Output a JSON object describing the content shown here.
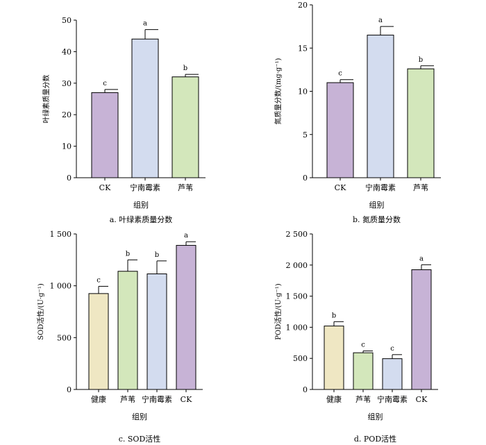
{
  "colors": {
    "purple": "#c7b3d6",
    "blue": "#d3dcef",
    "green": "#d3e7bb",
    "yellow": "#efe7c3",
    "axis": "#000000"
  },
  "chart_data": [
    {
      "type": "bar",
      "caption": "a. 叶绿素质量分数",
      "ylabel": "叶绿素质量分数",
      "xlabel": "组别",
      "categories": [
        "CK",
        "宁南霉素",
        "芦苇"
      ],
      "values": [
        27,
        44,
        32
      ],
      "errors": [
        1.0,
        3.0,
        0.8
      ],
      "letters": [
        "c",
        "a",
        "b"
      ],
      "bar_colors": [
        "purple",
        "blue",
        "green"
      ],
      "ylim": [
        0,
        50
      ],
      "yticks": [
        0,
        10,
        20,
        30,
        40,
        50
      ],
      "ytick_labels": [
        "0",
        "10",
        "20",
        "30",
        "40",
        "50"
      ]
    },
    {
      "type": "bar",
      "caption": "b. 氮质量分数",
      "ylabel": "氮质量分数/(mg·g⁻¹)",
      "xlabel": "组别",
      "categories": [
        "CK",
        "宁南霉素",
        "芦苇"
      ],
      "values": [
        11,
        16.5,
        12.6
      ],
      "errors": [
        0.35,
        1.0,
        0.35
      ],
      "letters": [
        "c",
        "a",
        "b"
      ],
      "bar_colors": [
        "purple",
        "blue",
        "green"
      ],
      "ylim": [
        0,
        20
      ],
      "yticks": [
        0,
        5,
        10,
        15,
        20
      ],
      "ytick_labels": [
        "0",
        "5",
        "10",
        "15",
        "20"
      ]
    },
    {
      "type": "bar",
      "caption": "c. SOD活性",
      "ylabel": "SOD活性/(U·g⁻¹)",
      "xlabel": "组别",
      "categories": [
        "健康",
        "芦苇",
        "宁南霉素",
        "CK"
      ],
      "values": [
        925,
        1140,
        1115,
        1390
      ],
      "errors": [
        70,
        110,
        125,
        35
      ],
      "letters": [
        "c",
        "b",
        "b",
        "a"
      ],
      "bar_colors": [
        "yellow",
        "green",
        "blue",
        "purple"
      ],
      "ylim": [
        0,
        1500
      ],
      "yticks": [
        0,
        500,
        1000,
        1500
      ],
      "ytick_labels": [
        "0",
        "500",
        "1 000",
        "1 500"
      ]
    },
    {
      "type": "bar",
      "caption": "d. POD活性",
      "ylabel": "POD活性/(U·g⁻¹)",
      "xlabel": "组别",
      "categories": [
        "健康",
        "芦苇",
        "宁南霉素",
        "CK"
      ],
      "values": [
        1020,
        590,
        495,
        1925
      ],
      "errors": [
        70,
        30,
        65,
        80
      ],
      "letters": [
        "b",
        "c",
        "c",
        "a"
      ],
      "bar_colors": [
        "yellow",
        "green",
        "blue",
        "purple"
      ],
      "ylim": [
        0,
        2500
      ],
      "yticks": [
        0,
        500,
        1000,
        1500,
        2000,
        2500
      ],
      "ytick_labels": [
        "0",
        "500",
        "1 000",
        "1 500",
        "2 000",
        "2 500"
      ]
    }
  ]
}
